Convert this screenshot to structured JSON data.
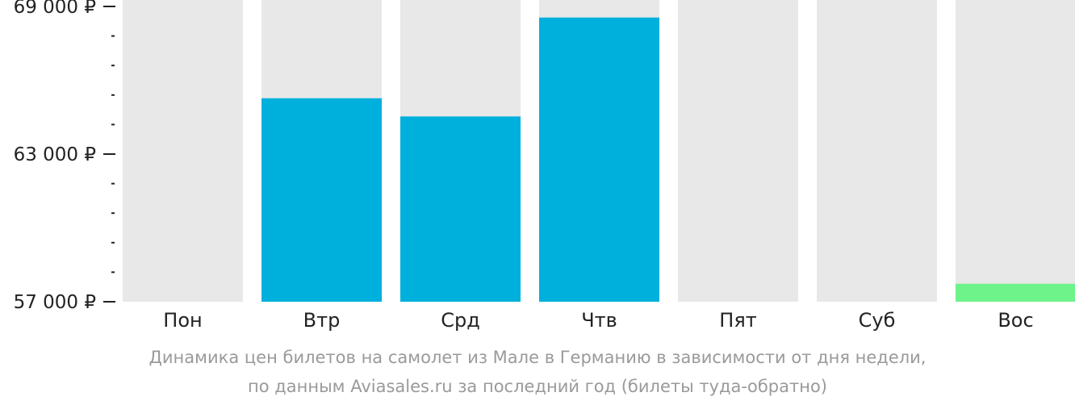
{
  "chart_data": {
    "type": "bar",
    "categories": [
      "Пон",
      "Втр",
      "Срд",
      "Чтв",
      "Пят",
      "Суб",
      "Вос"
    ],
    "values": [
      null,
      65270,
      64530,
      68550,
      null,
      null,
      57730
    ],
    "ylim": [
      57000,
      69000
    ],
    "yticks": [
      {
        "value": 69000,
        "label": "69 000 ₽"
      },
      {
        "value": 63000,
        "label": "63 000 ₽"
      },
      {
        "value": 57000,
        "label": "57 000 ₽"
      }
    ],
    "minor_tick_step": 1200,
    "colors": {
      "background_bar": "#e8e8e8",
      "bar": "#00b0dc",
      "lowest_bar": "#6ef28a",
      "axis": "#222222",
      "tick_text": "#222222",
      "category_text": "#222222"
    },
    "highlight_lowest": true,
    "grid": false,
    "legend": "none"
  },
  "caption": {
    "line1": "Динамика цен билетов на самолет из Мале в Германию в зависимости от дня недели,",
    "line2": "по данным Aviasales.ru за последний год (билеты туда-обратно)"
  }
}
